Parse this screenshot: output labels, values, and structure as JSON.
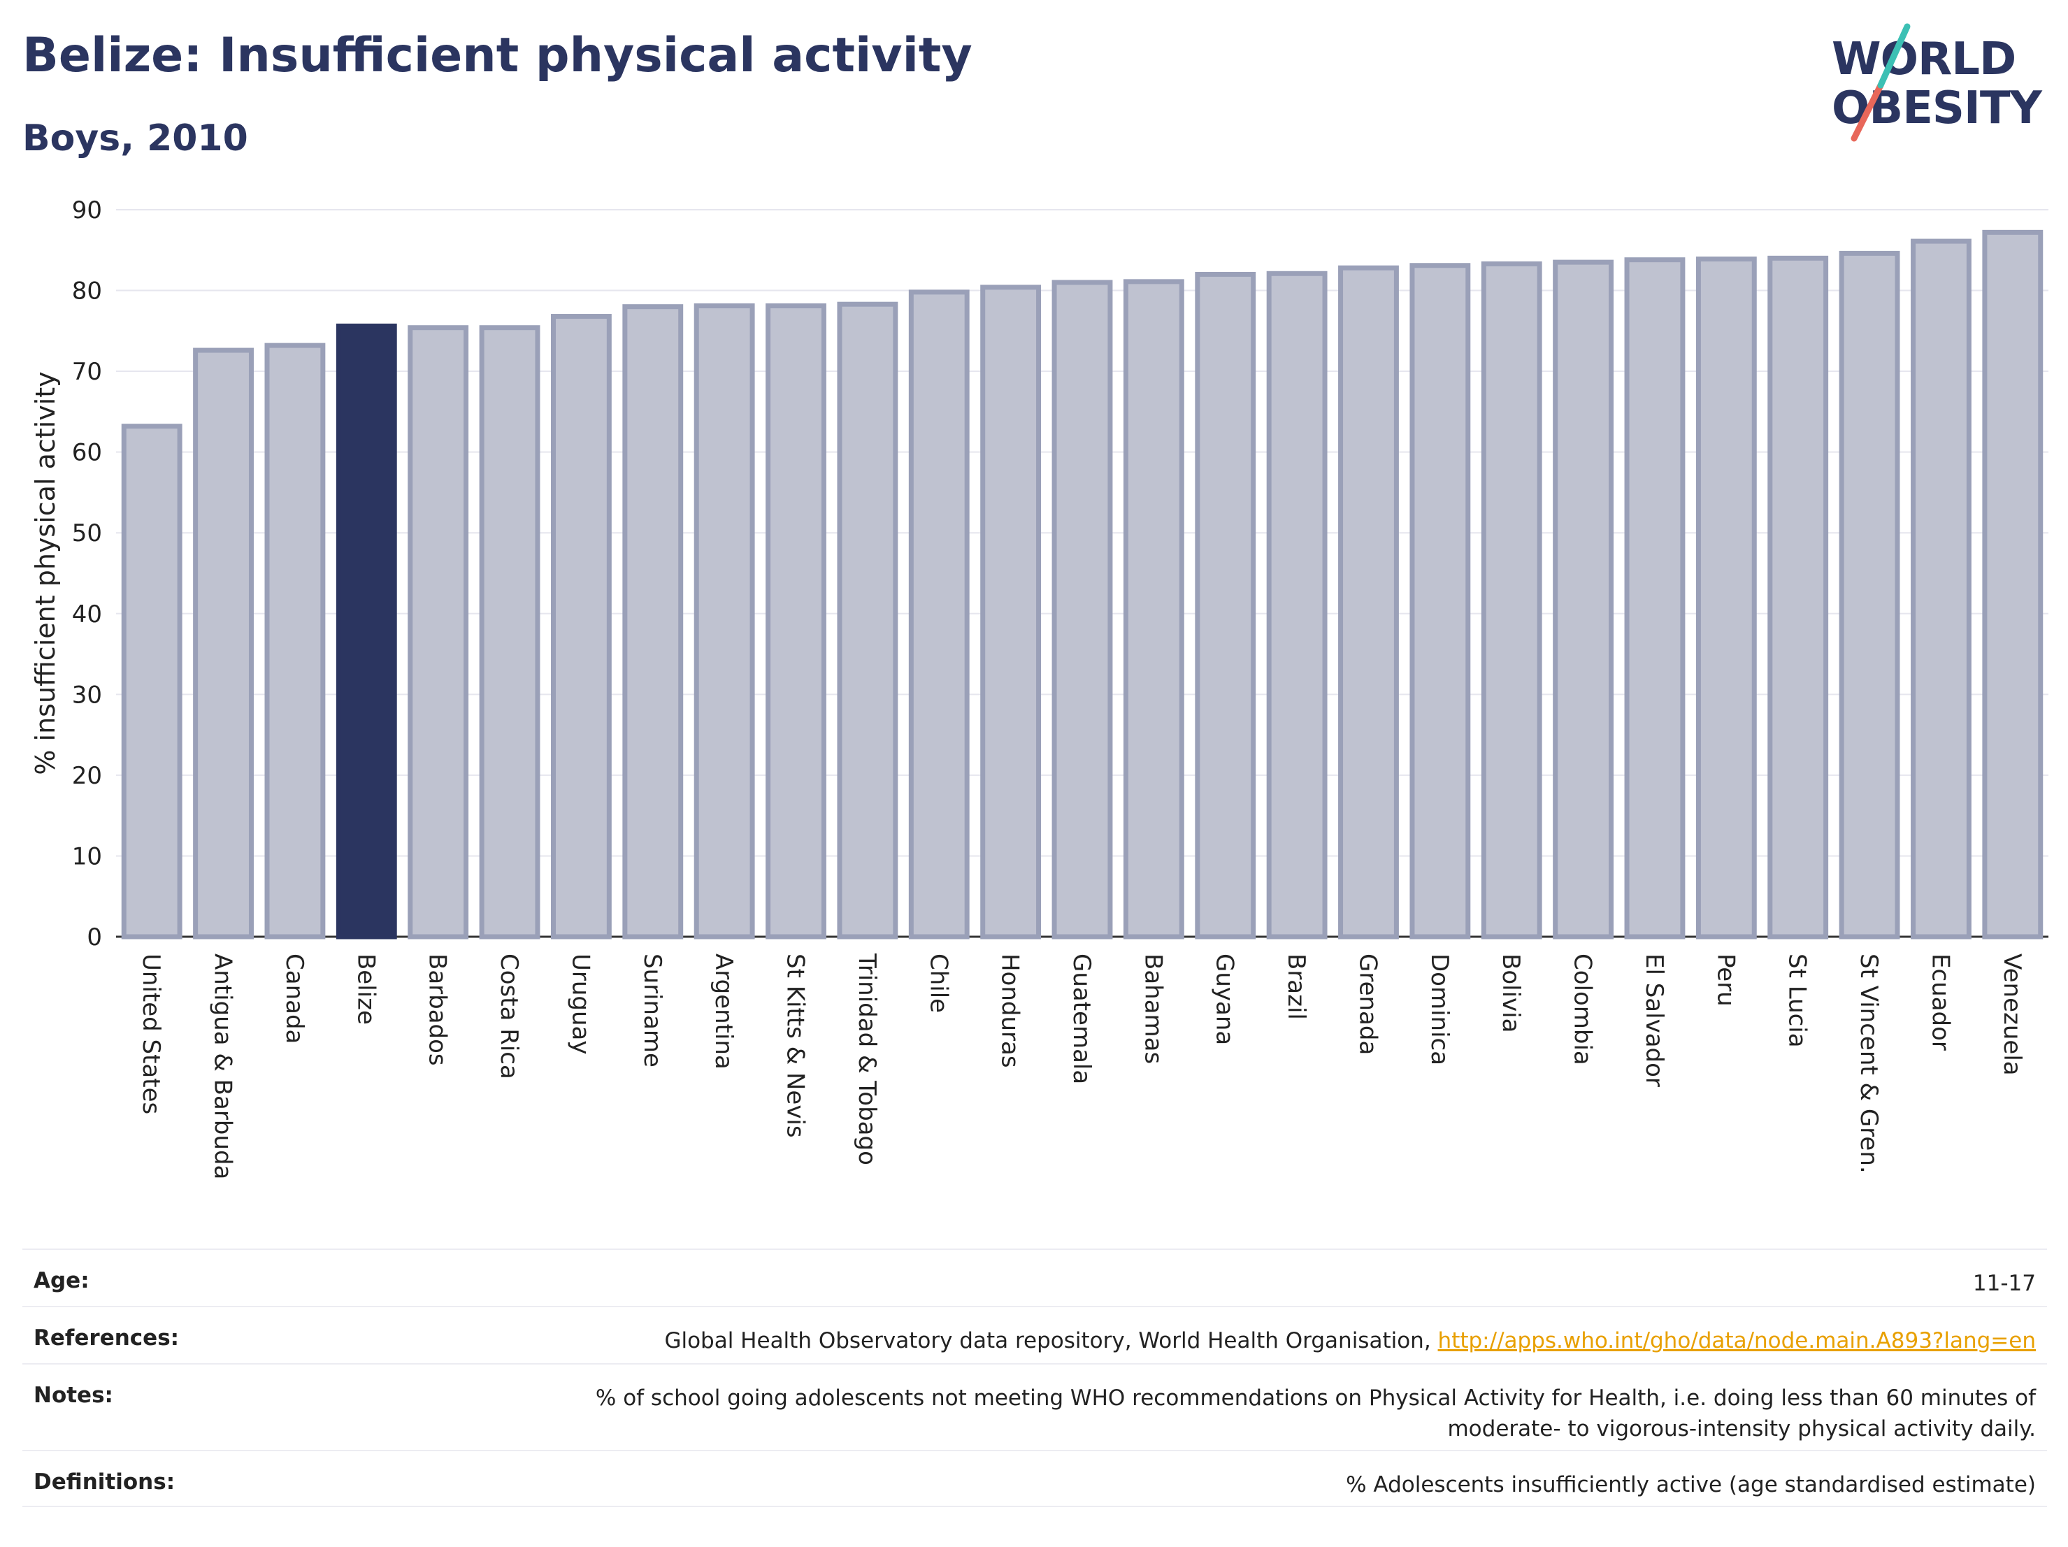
{
  "header": {
    "title": "Belize: Insufficient physical activity",
    "subtitle": "Boys, 2010"
  },
  "logo": {
    "line1": "WORLD",
    "line2": "OBESITY",
    "colors": {
      "navy": "#2b3560",
      "teal": "#3cc0b4",
      "coral": "#e8675a"
    }
  },
  "chart_data": {
    "type": "bar",
    "title": "Belize: Insufficient physical activity",
    "subtitle": "Boys, 2010",
    "xlabel": "",
    "ylabel": "% insufficient physical activity",
    "ylim": [
      0,
      90
    ],
    "yticks": [
      0,
      10,
      20,
      30,
      40,
      50,
      60,
      70,
      80,
      90
    ],
    "grid": true,
    "highlight": "Belize",
    "colors": {
      "bar": "#bfc2d0",
      "bar_stroke": "#9aa0b8",
      "highlight": "#2b3560"
    },
    "categories": [
      "United States",
      "Antigua & Barbuda",
      "Canada",
      "Belize",
      "Barbados",
      "Costa Rica",
      "Uruguay",
      "Suriname",
      "Argentina",
      "St Kitts & Nevis",
      "Trinidad & Tobago",
      "Chile",
      "Honduras",
      "Guatemala",
      "Bahamas",
      "Guyana",
      "Brazil",
      "Grenada",
      "Dominica",
      "Bolivia",
      "Colombia",
      "El Salvador",
      "Peru",
      "St Lucia",
      "St Vincent & Gren.",
      "Ecuador",
      "Venezuela"
    ],
    "values": [
      63.2,
      72.6,
      73.2,
      75.6,
      75.4,
      75.4,
      76.8,
      78.0,
      78.1,
      78.1,
      78.3,
      79.8,
      80.4,
      81.0,
      81.1,
      82.0,
      82.1,
      82.8,
      83.1,
      83.3,
      83.5,
      83.8,
      83.9,
      84.0,
      84.6,
      86.1,
      87.2
    ]
  },
  "info": {
    "age_label": "Age:",
    "age_value": "11-17",
    "references_label": "References:",
    "references_text": "Global Health Observatory data repository, World Health Organisation, ",
    "references_link": "http://apps.who.int/gho/data/node.main.A893?lang=en",
    "notes_label": "Notes:",
    "notes_text": "% of school going adolescents not meeting WHO recommendations on Physical Activity for Health, i.e. doing less than 60 minutes of moderate- to vigorous-intensity physical activity daily.",
    "definitions_label": "Definitions:",
    "definitions_text": "% Adolescents insufficiently active (age standardised estimate)"
  }
}
